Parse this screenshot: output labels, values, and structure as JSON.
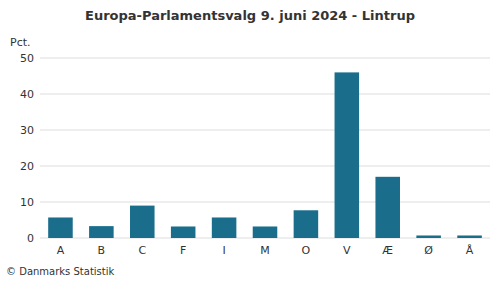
{
  "chart_data": {
    "type": "bar",
    "title": "Europa-Parlamentsvalg 9. juni 2024 - Lintrup",
    "categories": [
      "A",
      "B",
      "C",
      "F",
      "I",
      "M",
      "O",
      "V",
      "Æ",
      "Ø",
      "Å"
    ],
    "values": [
      5.7,
      3.3,
      9.0,
      3.2,
      5.7,
      3.2,
      7.7,
      46.0,
      17.0,
      0.7,
      0.7
    ],
    "color": "#1a6e8c",
    "ylabel": "Pct.",
    "footer": "© Danmarks Statistik",
    "ylim": [
      0,
      50
    ],
    "yticks": [
      0,
      10,
      20,
      30,
      40,
      50
    ],
    "grid": true
  }
}
